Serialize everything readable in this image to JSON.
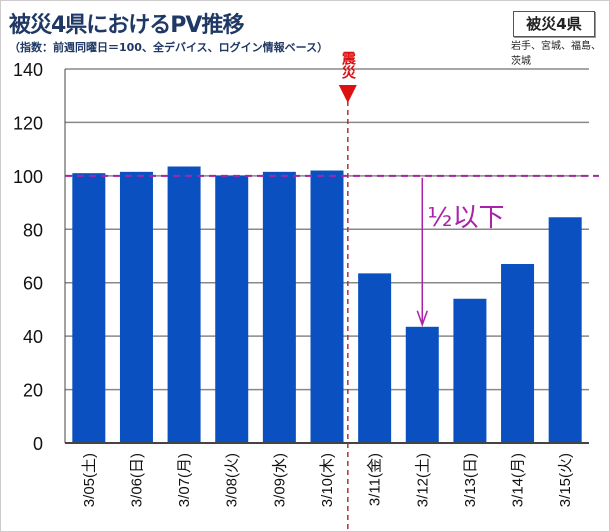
{
  "header": {
    "title": "被災4県におけるPV推移",
    "subtitle": "（指数：前週同曜日＝100、全デバイス、ログイン情報ベース）",
    "badge": "被災4県",
    "region": "岩手、宮城、福島、茨城"
  },
  "chart_data": {
    "type": "bar",
    "categories": [
      "3/05(土)",
      "3/06(日)",
      "3/07(月)",
      "3/08(火)",
      "3/09(水)",
      "3/10(木)",
      "3/11(金)",
      "3/12(土)",
      "3/13(日)",
      "3/14(月)",
      "3/15(火)"
    ],
    "values": [
      101,
      101.5,
      103.5,
      100,
      101.5,
      102,
      63.5,
      43.5,
      54,
      67,
      84.5
    ],
    "ylim": [
      0,
      140
    ],
    "yticks": [
      0,
      20,
      40,
      60,
      80,
      100,
      120,
      140
    ],
    "grid": true,
    "bar_color": "#0a50c0",
    "reference_line": {
      "value": 100,
      "color": "#aa22aa"
    },
    "event_marker": {
      "label": "震災",
      "after_category": "3/10(木)",
      "color": "#dd1111"
    },
    "annotation": {
      "text": "½以下",
      "color": "#aa22aa",
      "from_value": 100,
      "to_category": "3/12(土)"
    }
  }
}
